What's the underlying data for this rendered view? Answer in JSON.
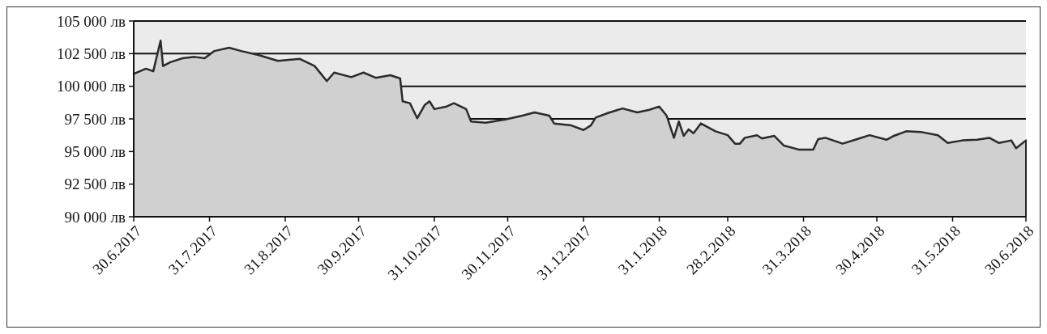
{
  "chart_data": {
    "type": "area",
    "grid": "y",
    "marker": "none",
    "xlim": [
      "2017-06-30",
      "2018-06-30"
    ],
    "xticks": [
      {
        "value": "2017-06-30",
        "label": "30.6.2017"
      },
      {
        "value": "2017-07-31",
        "label": "31.7.2017"
      },
      {
        "value": "2017-08-31",
        "label": "31.8.2017"
      },
      {
        "value": "2017-09-30",
        "label": "30.9.2017"
      },
      {
        "value": "2017-10-31",
        "label": "31.10.2017"
      },
      {
        "value": "2017-11-30",
        "label": "30.11.2017"
      },
      {
        "value": "2017-12-31",
        "label": "31.12.2017"
      },
      {
        "value": "2018-01-31",
        "label": "31.1.2018"
      },
      {
        "value": "2018-02-28",
        "label": "28.2.2018"
      },
      {
        "value": "2018-03-31",
        "label": "31.3.2018"
      },
      {
        "value": "2018-04-30",
        "label": "30.4.2018"
      },
      {
        "value": "2018-05-31",
        "label": "31.5.2018"
      },
      {
        "value": "2018-06-30",
        "label": "30.6.2018"
      }
    ],
    "ylim": [
      90000,
      105000
    ],
    "yticks": [
      {
        "value": 90000,
        "label": "90 000 лв"
      },
      {
        "value": 92500,
        "label": "92 500 лв"
      },
      {
        "value": 95000,
        "label": "95 000 лв"
      },
      {
        "value": 97500,
        "label": "97 500 лв"
      },
      {
        "value": 100000,
        "label": "100 000 лв"
      },
      {
        "value": 102500,
        "label": "102 500 лв"
      },
      {
        "value": 105000,
        "label": "105 000 лв"
      }
    ],
    "x": [
      "2017-06-30",
      "2017-07-05",
      "2017-07-08",
      "2017-07-11",
      "2017-07-12",
      "2017-07-15",
      "2017-07-20",
      "2017-07-25",
      "2017-07-29",
      "2017-08-02",
      "2017-08-08",
      "2017-08-13",
      "2017-08-20",
      "2017-08-28",
      "2017-09-06",
      "2017-09-12",
      "2017-09-17",
      "2017-09-20",
      "2017-09-27",
      "2017-10-02",
      "2017-10-07",
      "2017-10-13",
      "2017-10-17",
      "2017-10-18",
      "2017-10-21",
      "2017-10-24",
      "2017-10-27",
      "2017-10-29",
      "2017-10-31",
      "2017-11-05",
      "2017-11-08",
      "2017-11-13",
      "2017-11-15",
      "2017-11-21",
      "2017-11-29",
      "2017-12-06",
      "2017-12-11",
      "2017-12-17",
      "2017-12-19",
      "2017-12-26",
      "2017-12-31",
      "2018-01-03",
      "2018-01-05",
      "2018-01-10",
      "2018-01-16",
      "2018-01-22",
      "2018-01-27",
      "2018-01-31",
      "2018-02-03",
      "2018-02-06",
      "2018-02-08",
      "2018-02-10",
      "2018-02-12",
      "2018-02-14",
      "2018-02-17",
      "2018-02-23",
      "2018-02-28",
      "2018-03-03",
      "2018-03-05",
      "2018-03-07",
      "2018-03-12",
      "2018-03-14",
      "2018-03-19",
      "2018-03-23",
      "2018-03-29",
      "2018-04-04",
      "2018-04-06",
      "2018-04-09",
      "2018-04-16",
      "2018-04-22",
      "2018-04-27",
      "2018-05-04",
      "2018-05-07",
      "2018-05-12",
      "2018-05-18",
      "2018-05-25",
      "2018-05-29",
      "2018-06-04",
      "2018-06-10",
      "2018-06-15",
      "2018-06-19",
      "2018-06-24",
      "2018-06-26",
      "2018-06-30"
    ],
    "series": [
      {
        "color": "#2a2a2a",
        "values": [
          100950,
          101350,
          101150,
          103500,
          101550,
          101850,
          102150,
          102250,
          102150,
          102700,
          102950,
          102700,
          102400,
          101950,
          102100,
          101550,
          100400,
          101050,
          100700,
          101050,
          100650,
          100850,
          100600,
          98850,
          98700,
          97550,
          98550,
          98850,
          98250,
          98450,
          98700,
          98250,
          97300,
          97200,
          97450,
          97750,
          98000,
          97750,
          97150,
          97000,
          96650,
          97000,
          97600,
          97950,
          98300,
          98000,
          98200,
          98450,
          97750,
          96050,
          97300,
          96200,
          96700,
          96400,
          97150,
          96550,
          96250,
          95600,
          95600,
          96050,
          96250,
          96000,
          96200,
          95450,
          95150,
          95150,
          95950,
          96050,
          95600,
          95950,
          96250,
          95900,
          96200,
          96550,
          96500,
          96250,
          95650,
          95850,
          95900,
          96050,
          95650,
          95850,
          95250,
          95850
        ]
      }
    ]
  }
}
